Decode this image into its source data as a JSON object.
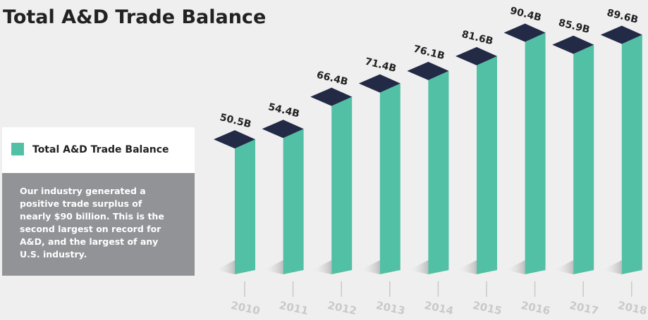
{
  "chart_data": {
    "type": "bar3d",
    "title": "Total A&D Trade Balance",
    "legend": "Total A&D Trade Balance",
    "note_lines": [
      "Our industry generated a",
      "positive trade surplus of",
      "nearly $90 billion. This is the",
      "second largest on record for",
      "A&D, and the largest of any",
      "U.S. industry."
    ],
    "categories": [
      "2010",
      "2011",
      "2012",
      "2013",
      "2014",
      "2015",
      "2016",
      "2017",
      "2018"
    ],
    "values": [
      50.5,
      54.4,
      66.4,
      71.4,
      76.1,
      81.6,
      90.4,
      85.9,
      89.6
    ],
    "value_labels": [
      "50.5B",
      "54.4B",
      "66.4B",
      "71.4B",
      "76.1B",
      "81.6B",
      "90.4B",
      "85.9B",
      "89.6B"
    ],
    "color": "#52c0a5",
    "top_color": "#222a45"
  }
}
